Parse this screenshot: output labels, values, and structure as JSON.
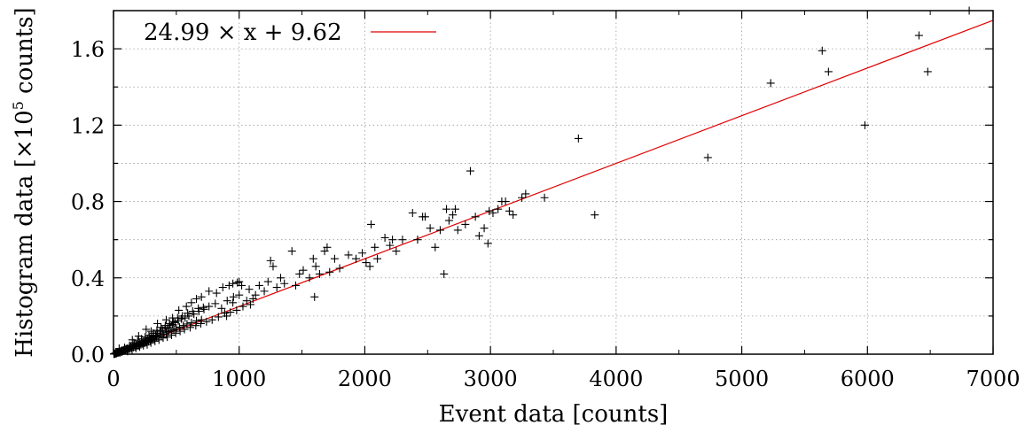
{
  "chart_data": {
    "type": "scatter",
    "title": "",
    "xlabel": "Event data [counts]",
    "ylabel_prefix": "Histogram data [×10",
    "ylabel_exp": "5",
    "ylabel_suffix": " counts]",
    "xlim": [
      0,
      7000
    ],
    "ylim": [
      0,
      1.8
    ],
    "xticks": [
      0,
      1000,
      2000,
      3000,
      4000,
      5000,
      6000,
      7000
    ],
    "xtick_labels": [
      "0",
      "1000",
      "2000",
      "3000",
      "4000",
      "5000",
      "6000",
      "7000"
    ],
    "yticks": [
      0,
      0.4,
      0.8,
      1.2,
      1.6
    ],
    "ytick_labels": [
      "0.0",
      "0.4",
      "0.8",
      "1.2",
      "1.6"
    ],
    "grid": true,
    "legend_position": "top-left",
    "marker_color": "#000000",
    "fit_color": "#e00000",
    "fit": {
      "label": "24.99 × x + 9.62",
      "slope": 24.99,
      "intercept": 9.62
    },
    "points": [
      [
        3,
        0.001
      ],
      [
        6,
        0.002
      ],
      [
        8,
        0.003
      ],
      [
        10,
        0.002
      ],
      [
        12,
        0.004
      ],
      [
        15,
        0.003
      ],
      [
        18,
        0.005
      ],
      [
        20,
        0.006
      ],
      [
        24,
        0.004
      ],
      [
        27,
        0.008
      ],
      [
        30,
        0.007
      ],
      [
        34,
        0.01
      ],
      [
        38,
        0.008
      ],
      [
        42,
        0.012
      ],
      [
        46,
        0.01
      ],
      [
        50,
        0.014
      ],
      [
        55,
        0.012
      ],
      [
        60,
        0.018
      ],
      [
        65,
        0.014
      ],
      [
        70,
        0.02
      ],
      [
        75,
        0.016
      ],
      [
        80,
        0.022
      ],
      [
        85,
        0.019
      ],
      [
        90,
        0.025
      ],
      [
        95,
        0.021
      ],
      [
        100,
        0.028
      ],
      [
        105,
        0.024
      ],
      [
        110,
        0.03
      ],
      [
        118,
        0.026
      ],
      [
        125,
        0.035
      ],
      [
        130,
        0.028
      ],
      [
        138,
        0.04
      ],
      [
        145,
        0.033
      ],
      [
        150,
        0.042
      ],
      [
        158,
        0.036
      ],
      [
        165,
        0.048
      ],
      [
        172,
        0.04
      ],
      [
        180,
        0.05
      ],
      [
        188,
        0.043
      ],
      [
        195,
        0.055
      ],
      [
        200,
        0.045
      ],
      [
        210,
        0.06
      ],
      [
        218,
        0.05
      ],
      [
        225,
        0.065
      ],
      [
        232,
        0.055
      ],
      [
        240,
        0.07
      ],
      [
        248,
        0.058
      ],
      [
        255,
        0.075
      ],
      [
        262,
        0.062
      ],
      [
        270,
        0.08
      ],
      [
        278,
        0.066
      ],
      [
        285,
        0.085
      ],
      [
        292,
        0.072
      ],
      [
        300,
        0.09
      ],
      [
        310,
        0.076
      ],
      [
        318,
        0.095
      ],
      [
        325,
        0.08
      ],
      [
        335,
        0.1
      ],
      [
        342,
        0.088
      ],
      [
        350,
        0.11
      ],
      [
        360,
        0.092
      ],
      [
        370,
        0.12
      ],
      [
        380,
        0.098
      ],
      [
        390,
        0.125
      ],
      [
        400,
        0.105
      ],
      [
        410,
        0.135
      ],
      [
        420,
        0.112
      ],
      [
        430,
        0.14
      ],
      [
        440,
        0.118
      ],
      [
        450,
        0.15
      ],
      [
        460,
        0.122
      ],
      [
        470,
        0.155
      ],
      [
        480,
        0.128
      ],
      [
        490,
        0.165
      ],
      [
        500,
        0.135
      ],
      [
        515,
        0.175
      ],
      [
        525,
        0.142
      ],
      [
        540,
        0.185
      ],
      [
        555,
        0.15
      ],
      [
        570,
        0.19
      ],
      [
        585,
        0.158
      ],
      [
        600,
        0.2
      ],
      [
        620,
        0.165
      ],
      [
        640,
        0.21
      ],
      [
        660,
        0.175
      ],
      [
        680,
        0.225
      ],
      [
        700,
        0.18
      ],
      [
        720,
        0.235
      ],
      [
        45,
        0.03
      ],
      [
        52,
        0.008
      ],
      [
        68,
        0.012
      ],
      [
        88,
        0.035
      ],
      [
        112,
        0.015
      ],
      [
        128,
        0.045
      ],
      [
        148,
        0.022
      ],
      [
        162,
        0.06
      ],
      [
        178,
        0.03
      ],
      [
        192,
        0.07
      ],
      [
        208,
        0.038
      ],
      [
        222,
        0.08
      ],
      [
        238,
        0.045
      ],
      [
        252,
        0.09
      ],
      [
        268,
        0.05
      ],
      [
        282,
        0.1
      ],
      [
        298,
        0.06
      ],
      [
        315,
        0.11
      ],
      [
        330,
        0.068
      ],
      [
        345,
        0.125
      ],
      [
        362,
        0.075
      ],
      [
        378,
        0.14
      ],
      [
        395,
        0.085
      ],
      [
        412,
        0.15
      ],
      [
        428,
        0.09
      ],
      [
        445,
        0.16
      ],
      [
        462,
        0.1
      ],
      [
        478,
        0.17
      ],
      [
        495,
        0.11
      ],
      [
        510,
        0.19
      ],
      [
        530,
        0.12
      ],
      [
        548,
        0.2
      ],
      [
        565,
        0.13
      ],
      [
        590,
        0.215
      ],
      [
        610,
        0.14
      ],
      [
        630,
        0.225
      ],
      [
        655,
        0.15
      ],
      [
        675,
        0.24
      ],
      [
        695,
        0.16
      ],
      [
        715,
        0.245
      ],
      [
        740,
        0.17
      ],
      [
        760,
        0.25
      ],
      [
        785,
        0.18
      ],
      [
        810,
        0.265
      ],
      [
        835,
        0.195
      ],
      [
        860,
        0.24
      ],
      [
        885,
        0.215
      ],
      [
        905,
        0.28
      ],
      [
        930,
        0.22
      ],
      [
        955,
        0.3
      ],
      [
        980,
        0.23
      ],
      [
        1000,
        0.31
      ],
      [
        1030,
        0.25
      ],
      [
        1060,
        0.28
      ],
      [
        1090,
        0.26
      ],
      [
        1110,
        0.29
      ],
      [
        150,
        0.075
      ],
      [
        200,
        0.095
      ],
      [
        260,
        0.13
      ],
      [
        300,
        0.12
      ],
      [
        350,
        0.16
      ],
      [
        420,
        0.18
      ],
      [
        470,
        0.19
      ],
      [
        520,
        0.23
      ],
      [
        580,
        0.25
      ],
      [
        620,
        0.27
      ],
      [
        660,
        0.29
      ],
      [
        700,
        0.3
      ],
      [
        760,
        0.33
      ],
      [
        820,
        0.32
      ],
      [
        870,
        0.35
      ],
      [
        920,
        0.36
      ],
      [
        950,
        0.37
      ],
      [
        985,
        0.375
      ],
      [
        1000,
        0.38
      ],
      [
        1020,
        0.36
      ],
      [
        950,
        0.27
      ],
      [
        900,
        0.2
      ],
      [
        1080,
        0.34
      ],
      [
        1130,
        0.31
      ],
      [
        1160,
        0.36
      ],
      [
        1200,
        0.33
      ],
      [
        1230,
        0.38
      ],
      [
        1250,
        0.49
      ],
      [
        1270,
        0.46
      ],
      [
        1300,
        0.35
      ],
      [
        1330,
        0.4
      ],
      [
        1360,
        0.37
      ],
      [
        1420,
        0.54
      ],
      [
        1450,
        0.36
      ],
      [
        1480,
        0.42
      ],
      [
        1510,
        0.44
      ],
      [
        1560,
        0.4
      ],
      [
        1590,
        0.5
      ],
      [
        1600,
        0.3
      ],
      [
        1610,
        0.46
      ],
      [
        1640,
        0.42
      ],
      [
        1680,
        0.54
      ],
      [
        1700,
        0.56
      ],
      [
        1720,
        0.43
      ],
      [
        1760,
        0.5
      ],
      [
        1800,
        0.45
      ],
      [
        1870,
        0.52
      ],
      [
        1930,
        0.5
      ],
      [
        1980,
        0.53
      ],
      [
        2010,
        0.48
      ],
      [
        2040,
        0.46
      ],
      [
        2050,
        0.68
      ],
      [
        2080,
        0.56
      ],
      [
        2100,
        0.5
      ],
      [
        2160,
        0.61
      ],
      [
        2200,
        0.57
      ],
      [
        2220,
        0.6
      ],
      [
        2250,
        0.54
      ],
      [
        2300,
        0.6
      ],
      [
        2380,
        0.74
      ],
      [
        2420,
        0.6
      ],
      [
        2460,
        0.72
      ],
      [
        2480,
        0.72
      ],
      [
        2520,
        0.66
      ],
      [
        2560,
        0.56
      ],
      [
        2600,
        0.65
      ],
      [
        2630,
        0.42
      ],
      [
        2650,
        0.76
      ],
      [
        2670,
        0.7
      ],
      [
        2700,
        0.73
      ],
      [
        2720,
        0.76
      ],
      [
        2740,
        0.65
      ],
      [
        2800,
        0.68
      ],
      [
        2840,
        0.96
      ],
      [
        2880,
        0.72
      ],
      [
        2910,
        0.62
      ],
      [
        2950,
        0.66
      ],
      [
        2980,
        0.58
      ],
      [
        2990,
        0.75
      ],
      [
        3020,
        0.74
      ],
      [
        3060,
        0.76
      ],
      [
        3090,
        0.8
      ],
      [
        3120,
        0.8
      ],
      [
        3150,
        0.75
      ],
      [
        3180,
        0.73
      ],
      [
        3250,
        0.82
      ],
      [
        3280,
        0.84
      ],
      [
        3430,
        0.82
      ],
      [
        3700,
        1.13
      ],
      [
        3830,
        0.73
      ],
      [
        4730,
        1.03
      ],
      [
        5230,
        1.42
      ],
      [
        5640,
        1.59
      ],
      [
        5690,
        1.48
      ],
      [
        5980,
        1.2
      ],
      [
        6410,
        1.67
      ],
      [
        6480,
        1.48
      ],
      [
        6810,
        1.8
      ]
    ]
  }
}
